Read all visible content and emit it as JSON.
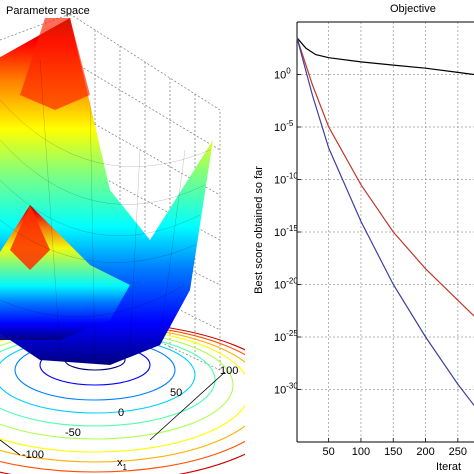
{
  "figure": {
    "left_title": "Parameter space",
    "right_title": "Objective"
  },
  "chart_data": [
    {
      "type": "surface",
      "title": "Parameter space",
      "xlabel": "x",
      "xlabel_sub": "1",
      "x_ticks": [
        "-100",
        "-50",
        "0",
        "50",
        "100"
      ],
      "colormap": "jet",
      "grid": true
    },
    {
      "type": "line",
      "title": "Objective",
      "ylabel": "Best score obtained so far",
      "xlabel": "Iterat",
      "yscale": "log",
      "grid": true,
      "x_ticks": [
        "50",
        "100",
        "150",
        "200",
        "250"
      ],
      "y_ticks": [
        {
          "base": "10",
          "exp": "0"
        },
        {
          "base": "10",
          "exp": "-5"
        },
        {
          "base": "10",
          "exp": "-10"
        },
        {
          "base": "10",
          "exp": "-15"
        },
        {
          "base": "10",
          "exp": "-20"
        },
        {
          "base": "10",
          "exp": "-25"
        },
        {
          "base": "10",
          "exp": "-30"
        }
      ],
      "xlim": [
        1,
        275
      ],
      "ylim_exp": [
        -35,
        5
      ],
      "series": [
        {
          "color": "#000000",
          "x": [
            1,
            15,
            30,
            50,
            100,
            150,
            200,
            250,
            275
          ],
          "log10_y": [
            3.5,
            2.5,
            1.9,
            1.6,
            1.2,
            0.9,
            0.6,
            0.2,
            0.0
          ]
        },
        {
          "color": "#c0392b",
          "x": [
            1,
            25,
            50,
            100,
            150,
            200,
            250,
            275
          ],
          "log10_y": [
            3.5,
            -1.0,
            -5.0,
            -10.5,
            -15.0,
            -18.5,
            -21.5,
            -23.0
          ]
        },
        {
          "color": "#3f3fa0",
          "x": [
            1,
            25,
            50,
            100,
            150,
            200,
            250,
            275
          ],
          "log10_y": [
            3.5,
            -2.0,
            -7.0,
            -14.0,
            -20.0,
            -25.0,
            -29.5,
            -31.5
          ]
        }
      ]
    }
  ]
}
